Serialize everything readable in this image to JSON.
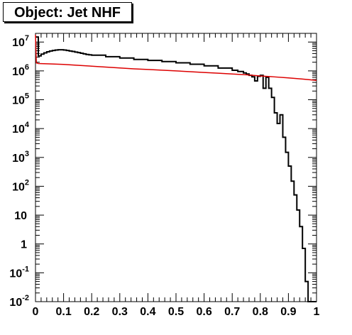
{
  "chart_data": {
    "type": "line",
    "title": "Object: Jet NHF",
    "y_scale": "log",
    "xlim": [
      0,
      1
    ],
    "ylim": [
      0.01,
      20000000
    ],
    "grid": false,
    "x_tick_labels": [
      "0",
      "0.1",
      "0.2",
      "0.3",
      "0.4",
      "0.5",
      "0.6",
      "0.7",
      "0.8",
      "0.9",
      "1"
    ],
    "x_tick_values": [
      0,
      0.1,
      0.2,
      0.3,
      0.4,
      0.5,
      0.6,
      0.7,
      0.8,
      0.9,
      1
    ],
    "y_ticks": [
      {
        "value": 0.01,
        "base": "10",
        "exp": "-2"
      },
      {
        "value": 0.1,
        "base": "10",
        "exp": "-1"
      },
      {
        "value": 1,
        "base": "1",
        "exp": ""
      },
      {
        "value": 10,
        "base": "10",
        "exp": ""
      },
      {
        "value": 100,
        "base": "10",
        "exp": "2"
      },
      {
        "value": 1000,
        "base": "10",
        "exp": "3"
      },
      {
        "value": 10000,
        "base": "10",
        "exp": "4"
      },
      {
        "value": 100000,
        "base": "10",
        "exp": "5"
      },
      {
        "value": 1000000,
        "base": "10",
        "exp": "6"
      },
      {
        "value": 10000000,
        "base": "10",
        "exp": "7"
      }
    ],
    "series": [
      {
        "color": "#000000",
        "style": "step",
        "x": [
          0.0,
          0.01,
          0.02,
          0.03,
          0.04,
          0.05,
          0.06,
          0.07,
          0.08,
          0.09,
          0.1,
          0.11,
          0.12,
          0.13,
          0.14,
          0.15,
          0.16,
          0.17,
          0.18,
          0.19,
          0.2,
          0.25,
          0.3,
          0.35,
          0.4,
          0.45,
          0.5,
          0.55,
          0.6,
          0.65,
          0.7,
          0.72,
          0.74,
          0.75,
          0.76,
          0.77,
          0.78,
          0.79,
          0.8,
          0.81,
          0.82,
          0.83,
          0.84,
          0.85,
          0.86,
          0.87,
          0.88,
          0.89,
          0.9,
          0.91,
          0.92,
          0.93,
          0.94,
          0.95,
          0.96,
          0.97,
          0.98,
          0.99
        ],
        "y": [
          15000000,
          3300000,
          3800000,
          4200000,
          4600000,
          4900000,
          5100000,
          5300000,
          5400000,
          5400000,
          5300000,
          5100000,
          4900000,
          4700000,
          4500000,
          4300000,
          4100000,
          3900000,
          3700000,
          3600000,
          3500000,
          3100000,
          2800000,
          2500000,
          2300000,
          2100000,
          1900000,
          1700000,
          1500000,
          1250000,
          1050000,
          950000,
          850000,
          780000,
          700000,
          620000,
          450000,
          650000,
          700000,
          250000,
          600000,
          250000,
          120000,
          35000,
          15000,
          30000,
          5000,
          1500,
          500,
          150,
          50,
          15,
          4,
          0.7,
          0.05,
          0.01,
          0.01,
          0.01
        ]
      },
      {
        "color": "#dd0000",
        "style": "line",
        "x": [
          0.0,
          0.003,
          0.01,
          0.05,
          0.1,
          0.15,
          0.2,
          0.25,
          0.3,
          0.35,
          0.4,
          0.45,
          0.5,
          0.55,
          0.6,
          0.65,
          0.7,
          0.75,
          0.8,
          0.85,
          0.9,
          0.95,
          1.0
        ],
        "y": [
          18000000,
          1900000,
          1800000,
          1750000,
          1680000,
          1560000,
          1460000,
          1360000,
          1260000,
          1180000,
          1120000,
          1060000,
          1000000,
          940000,
          880000,
          830000,
          780000,
          730000,
          670000,
          620000,
          570000,
          520000,
          470000
        ]
      }
    ]
  }
}
